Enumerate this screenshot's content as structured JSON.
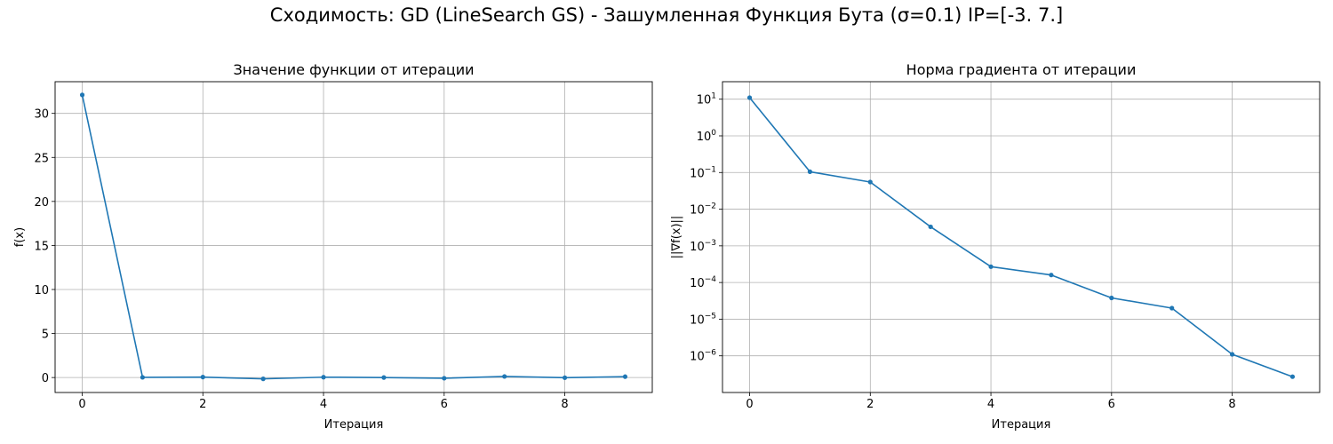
{
  "figure": {
    "suptitle": "Сходимость: GD (LineSearch GS) - Зашумленная Функция Бута (σ=0.1) IP=[-3.  7.]"
  },
  "colors": {
    "series": "#1f77b4",
    "grid": "#b0b0b0",
    "axes": "#000000"
  },
  "chart_data": [
    {
      "type": "line",
      "title": "Значение функции от итерации",
      "xlabel": "Итерация",
      "ylabel": "f(x)",
      "yscale": "linear",
      "grid": true,
      "xlim": [
        -0.45,
        9.45
      ],
      "ylim": [
        -1.7,
        33.6
      ],
      "x_ticks": [
        0,
        2,
        4,
        6,
        8
      ],
      "y_ticks": [
        0,
        5,
        10,
        15,
        20,
        25,
        30
      ],
      "x_tick_labels": [
        "0",
        "2",
        "4",
        "6",
        "8"
      ],
      "y_tick_labels": [
        "0",
        "5",
        "10",
        "15",
        "20",
        "25",
        "30"
      ],
      "x": [
        0,
        1,
        2,
        3,
        4,
        5,
        6,
        7,
        8,
        9
      ],
      "series": [
        {
          "values": [
            32.1,
            0.02,
            0.05,
            -0.15,
            0.04,
            0.0,
            -0.08,
            0.12,
            -0.02,
            0.1
          ]
        }
      ]
    },
    {
      "type": "line",
      "title": "Норма градиента от итерации",
      "xlabel": "Итерация",
      "ylabel": "||∇f(x)||",
      "yscale": "log",
      "grid": true,
      "xlim": [
        -0.45,
        9.45
      ],
      "ylim": [
        1e-07,
        30
      ],
      "x_ticks": [
        0,
        2,
        4,
        6,
        8
      ],
      "y_ticks": [
        1e-06,
        1e-05,
        0.0001,
        0.001,
        0.01,
        0.1,
        1,
        10
      ],
      "x_tick_labels": [
        "0",
        "2",
        "4",
        "6",
        "8"
      ],
      "y_tick_labels": [
        {
          "base": "10",
          "exp": "−6"
        },
        {
          "base": "10",
          "exp": "−5"
        },
        {
          "base": "10",
          "exp": "−4"
        },
        {
          "base": "10",
          "exp": "−3"
        },
        {
          "base": "10",
          "exp": "−2"
        },
        {
          "base": "10",
          "exp": "−1"
        },
        {
          "base": "10",
          "exp": "0"
        },
        {
          "base": "10",
          "exp": "1"
        }
      ],
      "x": [
        0,
        1,
        2,
        3,
        4,
        5,
        6,
        7,
        8,
        9
      ],
      "series": [
        {
          "values": [
            11.0,
            0.105,
            0.055,
            0.0033,
            0.00027,
            0.00016,
            3.8e-05,
            2e-05,
            1.1e-06,
            2.7e-07
          ]
        }
      ]
    }
  ]
}
